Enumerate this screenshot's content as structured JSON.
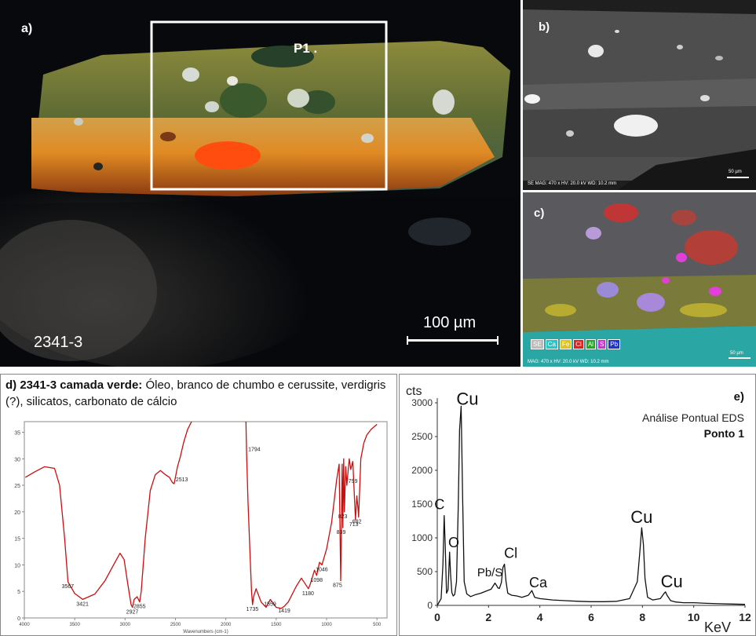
{
  "panel_a": {
    "label": "a)",
    "sample_id": "2341-3",
    "point_label": "P1 .",
    "scale_bar": "100 µm"
  },
  "panel_b": {
    "label": "b)",
    "footer": "SE  MAG: 470 x  HV: 20.0 kV  WD: 10.2 mm",
    "scale": "50 µm"
  },
  "panel_c": {
    "label": "c)",
    "legend": [
      {
        "text": "SE",
        "color": "#bbbbbb"
      },
      {
        "text": "Ca",
        "color": "#22c7c7"
      },
      {
        "text": "Fe",
        "color": "#e0c21a"
      },
      {
        "text": "Cl",
        "color": "#dd2222"
      },
      {
        "text": "Al",
        "color": "#22aa22"
      },
      {
        "text": "S",
        "color": "#cc33cc"
      },
      {
        "text": "Pb",
        "color": "#2233cc"
      }
    ],
    "footer": "MAG: 470 x  HV: 20.0 kV  WD: 10.2 mm",
    "scale": "50 µm"
  },
  "panel_d": {
    "label": "d)",
    "title_bold": "2341-3 camada verde:",
    "title_rest": " Óleo, branco de chumbo e cerussite, verdigris (?), silicatos, carbonato de cálcio"
  },
  "panel_e": {
    "label": "e)",
    "annotation_line1": "Análise Pontual EDS",
    "annotation_line2": "Ponto 1"
  },
  "chart_data": [
    {
      "type": "line",
      "panel": "d",
      "xlabel": "Wavenumbers (cm-1)",
      "xlim": [
        4000,
        400
      ],
      "ylim": [
        0,
        37
      ],
      "xticks": [
        4000,
        3500,
        3000,
        2500,
        2000,
        1500,
        1000,
        500
      ],
      "yticks": [
        0,
        5,
        10,
        15,
        20,
        25,
        30,
        35
      ],
      "series": [
        {
          "segment": "high",
          "color": "#c81010",
          "x": [
            3990,
            3900,
            3800,
            3700,
            3650,
            3600,
            3567,
            3500,
            3421,
            3300,
            3200,
            3100,
            3050,
            3010,
            2970,
            2940,
            2927,
            2910,
            2880,
            2855,
            2840,
            2800,
            2750,
            2700,
            2650,
            2600,
            2560,
            2530,
            2513,
            2480,
            2450,
            2420,
            2380,
            2340
          ],
          "y": [
            26.5,
            27.5,
            28.5,
            28.2,
            25.0,
            15.0,
            6.8,
            4.6,
            3.5,
            4.5,
            7.0,
            10.5,
            12.2,
            11.0,
            6.0,
            2.5,
            2.0,
            3.5,
            4.0,
            3.0,
            5.0,
            15.0,
            24.0,
            27.0,
            27.8,
            27.0,
            26.5,
            25.5,
            25.3,
            28.5,
            30.5,
            33.0,
            35.5,
            37.0
          ]
        },
        {
          "segment": "low",
          "color": "#c81010",
          "x": [
            1800,
            1794,
            1780,
            1760,
            1745,
            1735,
            1725,
            1700,
            1650,
            1600,
            1559,
            1500,
            1450,
            1419,
            1380,
            1300,
            1250,
            1180,
            1160,
            1120,
            1098,
            1070,
            1046,
            1000,
            950,
            900,
            875,
            860,
            845,
            839,
            830,
            823,
            810,
            799,
            790,
            775,
            760,
            740,
            713,
            700,
            690,
            682,
            660,
            630,
            600,
            560,
            530,
            500
          ],
          "y": [
            37.0,
            31.0,
            22.0,
            12.0,
            5.0,
            2.5,
            4.0,
            5.5,
            3.0,
            2.0,
            3.5,
            2.0,
            1.8,
            2.2,
            3.0,
            6.0,
            7.5,
            5.5,
            6.5,
            9.0,
            8.0,
            10.5,
            10.0,
            13.0,
            18.0,
            26.0,
            29.0,
            7.0,
            29.0,
            17.0,
            30.0,
            20.0,
            28.5,
            25.0,
            27.0,
            30.0,
            28.0,
            29.5,
            18.5,
            23.0,
            21.0,
            19.0,
            30.0,
            33.0,
            34.5,
            35.5,
            36.0,
            36.5
          ]
        }
      ],
      "peak_labels": [
        {
          "text": "3567",
          "x": 3567,
          "y": 6.8
        },
        {
          "text": "3421",
          "x": 3421,
          "y": 3.5
        },
        {
          "text": "2927",
          "x": 2927,
          "y": 2.0
        },
        {
          "text": "2855",
          "x": 2855,
          "y": 3.0
        },
        {
          "text": "2513",
          "x": 2513,
          "y": 25.3
        },
        {
          "text": "1794",
          "x": 1794,
          "y": 31.0
        },
        {
          "text": "1735",
          "x": 1735,
          "y": 2.5
        },
        {
          "text": "1559",
          "x": 1559,
          "y": 3.5
        },
        {
          "text": "1419",
          "x": 1419,
          "y": 2.2
        },
        {
          "text": "1180",
          "x": 1180,
          "y": 5.5
        },
        {
          "text": "1098",
          "x": 1098,
          "y": 8.0
        },
        {
          "text": "1046",
          "x": 1046,
          "y": 10.0
        },
        {
          "text": "875",
          "x": 875,
          "y": 7.0
        },
        {
          "text": "839",
          "x": 839,
          "y": 17.0
        },
        {
          "text": "823",
          "x": 823,
          "y": 20.0
        },
        {
          "text": "799",
          "x": 799,
          "y": 25.0
        },
        {
          "text": "713",
          "x": 713,
          "y": 18.5
        },
        {
          "text": "682",
          "x": 682,
          "y": 19.0
        }
      ]
    },
    {
      "type": "line",
      "panel": "e",
      "ylabel": "cts",
      "xlabel": "KeV",
      "xlim": [
        0,
        12
      ],
      "ylim": [
        0,
        3000
      ],
      "xticks": [
        0,
        2,
        4,
        6,
        8,
        10,
        12
      ],
      "yticks": [
        0,
        500,
        1000,
        1500,
        2000,
        2500,
        3000
      ],
      "series": [
        {
          "color": "#111111",
          "x": [
            0.0,
            0.15,
            0.22,
            0.27,
            0.31,
            0.36,
            0.42,
            0.48,
            0.52,
            0.57,
            0.62,
            0.68,
            0.75,
            0.82,
            0.87,
            0.93,
            0.99,
            1.05,
            1.15,
            1.3,
            1.5,
            1.7,
            1.9,
            2.1,
            2.25,
            2.32,
            2.36,
            2.42,
            2.5,
            2.56,
            2.62,
            2.68,
            2.75,
            2.9,
            3.1,
            3.3,
            3.55,
            3.69,
            3.8,
            4.0,
            4.5,
            5.0,
            5.5,
            6.0,
            6.5,
            7.0,
            7.5,
            7.8,
            7.9,
            7.97,
            8.04,
            8.1,
            8.2,
            8.4,
            8.7,
            8.85,
            8.9,
            8.96,
            9.1,
            9.3,
            9.6,
            10.0,
            10.5,
            11.0,
            11.5,
            12.0
          ],
          "y": [
            0,
            100,
            600,
            1330,
            900,
            180,
            230,
            790,
            450,
            190,
            140,
            160,
            350,
            1500,
            2600,
            2950,
            1600,
            350,
            170,
            130,
            160,
            180,
            210,
            240,
            330,
            290,
            260,
            250,
            340,
            560,
            610,
            360,
            180,
            150,
            140,
            120,
            150,
            220,
            120,
            100,
            80,
            70,
            60,
            55,
            55,
            60,
            100,
            350,
            800,
            1150,
            900,
            400,
            120,
            80,
            100,
            180,
            200,
            150,
            70,
            50,
            40,
            40,
            30,
            25,
            20,
            15
          ]
        }
      ],
      "peak_labels": [
        {
          "text": "Cu",
          "x": 0.93,
          "y": 2950
        },
        {
          "text": "C",
          "x": 0.27,
          "y": 1330
        },
        {
          "text": "O",
          "x": 0.52,
          "y": 790
        },
        {
          "text": "Pb/S",
          "x": 2.36,
          "y": 290
        },
        {
          "text": "Cl",
          "x": 2.62,
          "y": 610
        },
        {
          "text": "Ca",
          "x": 3.69,
          "y": 220
        },
        {
          "text": "Cu",
          "x": 7.97,
          "y": 1150
        },
        {
          "text": "Cu",
          "x": 8.9,
          "y": 200
        }
      ]
    }
  ]
}
